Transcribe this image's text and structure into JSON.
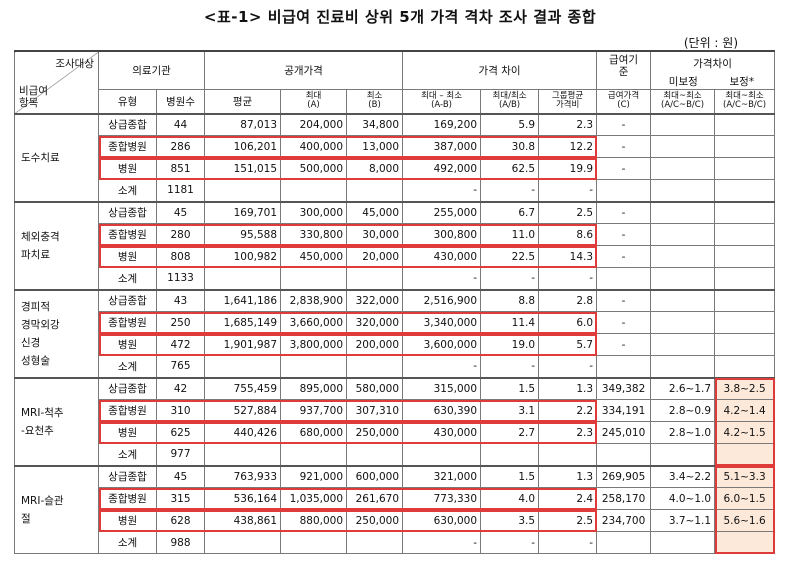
{
  "title": "<표-1> 비급여 진료비 상위 5개 가격 격차 조사 결과 종합",
  "unit": "(단위 : 원)",
  "header": {
    "corner_top": "조사대상",
    "corner_bottom": "비급여\n항목",
    "medical": "의료기관",
    "public_price": "공개가격",
    "price_gap": "가격 차이",
    "benefit": "급여기준",
    "gap2": "가격차이",
    "type": "유형",
    "count": "병원수",
    "avg": "평균",
    "max": "최대",
    "max_sub": "(A)",
    "min": "최소",
    "min_sub": "(B)",
    "diff": "최대 – 최소",
    "diff_sub": "(A-B)",
    "ratio": "최대/최소",
    "ratio_sub": "(A/B)",
    "group_ratio": "그룹평균",
    "group_ratio_sub": "가격비",
    "benefit_price": "급여가격",
    "benefit_price_sub": "(C)",
    "uncorrected": "미보정",
    "corrected": "보정*",
    "unc_label": "최대~최소",
    "unc_sub": "(A/C~B/C)",
    "cor_label": "최대~최소",
    "cor_sub": "(A/C~B/C)"
  },
  "groups": [
    {
      "item": "도수치료",
      "rows": [
        {
          "type": "상급종합",
          "count": "44",
          "avg": "87,013",
          "max": "204,000",
          "min": "34,800",
          "diff": "169,200",
          "ratio": "5.9",
          "group": "2.3",
          "benefit": "-",
          "unc": "",
          "cor": "",
          "bold": false
        },
        {
          "type": "종합병원",
          "count": "286",
          "avg": "106,201",
          "max": "400,000",
          "min": "13,000",
          "diff": "387,000",
          "ratio": "30.8",
          "group": "12.2",
          "benefit": "-",
          "unc": "",
          "cor": "",
          "bold": true
        },
        {
          "type": "병원",
          "count": "851",
          "avg": "151,015",
          "max": "500,000",
          "min": "8,000",
          "diff": "492,000",
          "ratio": "62.5",
          "group": "19.9",
          "benefit": "-",
          "unc": "",
          "cor": "",
          "bold": true
        },
        {
          "type": "소계",
          "count": "1181",
          "avg": "",
          "max": "",
          "min": "",
          "diff": "-",
          "ratio": "-",
          "group": "-",
          "benefit": "",
          "unc": "",
          "cor": "",
          "bold": false
        }
      ]
    },
    {
      "item": "체외충격파치료",
      "item_lines": [
        "체외충격",
        "파치료"
      ],
      "rows": [
        {
          "type": "상급종합",
          "count": "45",
          "avg": "169,701",
          "max": "300,000",
          "min": "45,000",
          "diff": "255,000",
          "ratio": "6.7",
          "group": "2.5",
          "benefit": "-",
          "unc": "",
          "cor": "",
          "bold": false
        },
        {
          "type": "종합병원",
          "count": "280",
          "avg": "95,588",
          "max": "330,800",
          "min": "30,000",
          "diff": "300,800",
          "ratio": "11.0",
          "group": "8.6",
          "benefit": "-",
          "unc": "",
          "cor": "",
          "bold": true
        },
        {
          "type": "병원",
          "count": "808",
          "avg": "100,982",
          "max": "450,000",
          "min": "20,000",
          "diff": "430,000",
          "ratio": "22.5",
          "group": "14.3",
          "benefit": "-",
          "unc": "",
          "cor": "",
          "bold": true
        },
        {
          "type": "소계",
          "count": "1133",
          "avg": "",
          "max": "",
          "min": "",
          "diff": "-",
          "ratio": "-",
          "group": "-",
          "benefit": "",
          "unc": "",
          "cor": "",
          "bold": false
        }
      ]
    },
    {
      "item": "경피적경막외강신경성형술",
      "item_lines": [
        "경피적",
        "경막외강",
        "신경",
        "성형술"
      ],
      "rows": [
        {
          "type": "상급종합",
          "count": "43",
          "avg": "1,641,186",
          "max": "2,838,900",
          "min": "322,000",
          "diff": "2,516,900",
          "ratio": "8.8",
          "group": "2.8",
          "benefit": "-",
          "unc": "",
          "cor": "",
          "bold": false
        },
        {
          "type": "종합병원",
          "count": "250",
          "avg": "1,685,149",
          "max": "3,660,000",
          "min": "320,000",
          "diff": "3,340,000",
          "ratio": "11.4",
          "group": "6.0",
          "benefit": "-",
          "unc": "",
          "cor": "",
          "bold": true
        },
        {
          "type": "병원",
          "count": "472",
          "avg": "1,901,987",
          "max": "3,800,000",
          "min": "200,000",
          "diff": "3,600,000",
          "ratio": "19.0",
          "group": "5.7",
          "benefit": "-",
          "unc": "",
          "cor": "",
          "bold": true
        },
        {
          "type": "소계",
          "count": "765",
          "avg": "",
          "max": "",
          "min": "",
          "diff": "-",
          "ratio": "-",
          "group": "-",
          "benefit": "",
          "unc": "",
          "cor": "",
          "bold": false
        }
      ]
    },
    {
      "item": "MRI-척추-요천추",
      "item_lines": [
        "MRI-척추",
        "-요천추"
      ],
      "rows": [
        {
          "type": "상급종합",
          "count": "42",
          "avg": "755,459",
          "max": "895,000",
          "min": "580,000",
          "diff": "315,000",
          "ratio": "1.5",
          "group": "1.3",
          "benefit": "349,382",
          "unc": "2.6~1.7",
          "cor": "3.8~2.5",
          "bold": false
        },
        {
          "type": "종합병원",
          "count": "310",
          "avg": "527,884",
          "max": "937,700",
          "min": "307,310",
          "diff": "630,390",
          "ratio": "3.1",
          "group": "2.2",
          "benefit": "334,191",
          "unc": "2.8~0.9",
          "cor": "4.2~1.4",
          "bold": true
        },
        {
          "type": "병원",
          "count": "625",
          "avg": "440,426",
          "max": "680,000",
          "min": "250,000",
          "diff": "430,000",
          "ratio": "2.7",
          "group": "2.3",
          "benefit": "245,010",
          "unc": "2.8~1.0",
          "cor": "4.2~1.5",
          "bold": true
        },
        {
          "type": "소계",
          "count": "977",
          "avg": "",
          "max": "",
          "min": "",
          "diff": "",
          "ratio": "",
          "group": "",
          "benefit": "",
          "unc": "",
          "cor": "",
          "bold": false
        }
      ]
    },
    {
      "item": "MRI-슬관절",
      "item_lines": [
        "MRI-슬관",
        "절"
      ],
      "rows": [
        {
          "type": "상급종합",
          "count": "45",
          "avg": "763,933",
          "max": "921,000",
          "min": "600,000",
          "diff": "321,000",
          "ratio": "1.5",
          "group": "1.3",
          "benefit": "269,905",
          "unc": "3.4~2.2",
          "cor": "5.1~3.3",
          "bold": false
        },
        {
          "type": "종합병원",
          "count": "315",
          "avg": "536,164",
          "max": "1,035,000",
          "min": "261,670",
          "diff": "773,330",
          "ratio": "4.0",
          "group": "2.4",
          "benefit": "258,170",
          "unc": "4.0~1.0",
          "cor": "6.0~1.5",
          "bold": true
        },
        {
          "type": "병원",
          "count": "628",
          "avg": "438,861",
          "max": "880,000",
          "min": "250,000",
          "diff": "630,000",
          "ratio": "3.5",
          "group": "2.5",
          "benefit": "234,700",
          "unc": "3.7~1.1",
          "cor": "5.6~1.6",
          "bold": true
        },
        {
          "type": "소계",
          "count": "988",
          "avg": "",
          "max": "",
          "min": "",
          "diff": "-",
          "ratio": "-",
          "group": "-",
          "benefit": "",
          "unc": "",
          "cor": "",
          "bold": false
        }
      ]
    }
  ]
}
